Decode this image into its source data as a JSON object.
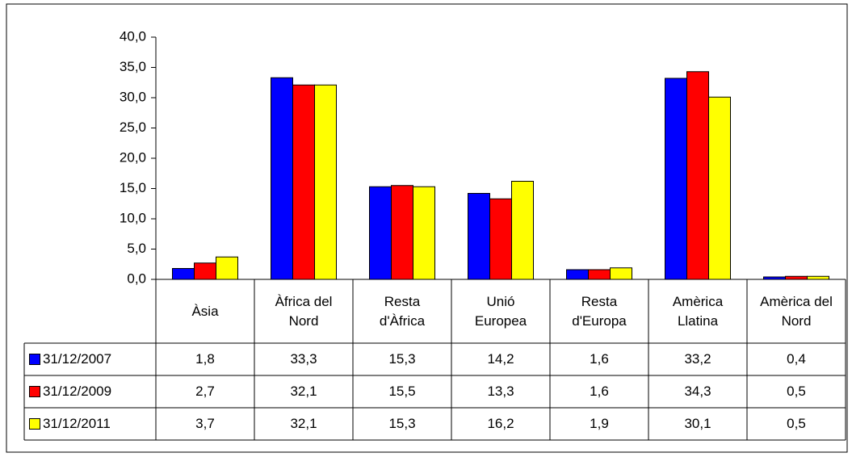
{
  "chart_data": {
    "type": "bar",
    "categories": [
      "Àsia",
      "Àfrica del Nord",
      "Resta d'Àfrica",
      "Unió Europea",
      "Resta d'Europa",
      "Amèrica Llatina",
      "Amèrica del Nord"
    ],
    "series": [
      {
        "name": "31/12/2007",
        "color": "#0000ff",
        "values": [
          1.8,
          33.3,
          15.3,
          14.2,
          1.6,
          33.2,
          0.4
        ],
        "value_labels": [
          "1,8",
          "33,3",
          "15,3",
          "14,2",
          "1,6",
          "33,2",
          "0,4"
        ]
      },
      {
        "name": "31/12/2009",
        "color": "#ff0000",
        "values": [
          2.7,
          32.1,
          15.5,
          13.3,
          1.6,
          34.3,
          0.5
        ],
        "value_labels": [
          "2,7",
          "32,1",
          "15,5",
          "13,3",
          "1,6",
          "34,3",
          "0,5"
        ]
      },
      {
        "name": "31/12/2011",
        "color": "#ffff00",
        "values": [
          3.7,
          32.1,
          15.3,
          16.2,
          1.9,
          30.1,
          0.5
        ],
        "value_labels": [
          "3,7",
          "32,1",
          "15,3",
          "16,2",
          "1,9",
          "30,1",
          "0,5"
        ]
      }
    ],
    "ylim": [
      0,
      40
    ],
    "yticks": [
      {
        "value": 0,
        "label": "0,0"
      },
      {
        "value": 5,
        "label": "5,0"
      },
      {
        "value": 10,
        "label": "10,0"
      },
      {
        "value": 15,
        "label": "15,0"
      },
      {
        "value": 20,
        "label": "20,0"
      },
      {
        "value": 25,
        "label": "25,0"
      },
      {
        "value": 30,
        "label": "30,0"
      },
      {
        "value": 35,
        "label": "35,0"
      },
      {
        "value": 40,
        "label": "40,0"
      }
    ],
    "grid": false
  }
}
